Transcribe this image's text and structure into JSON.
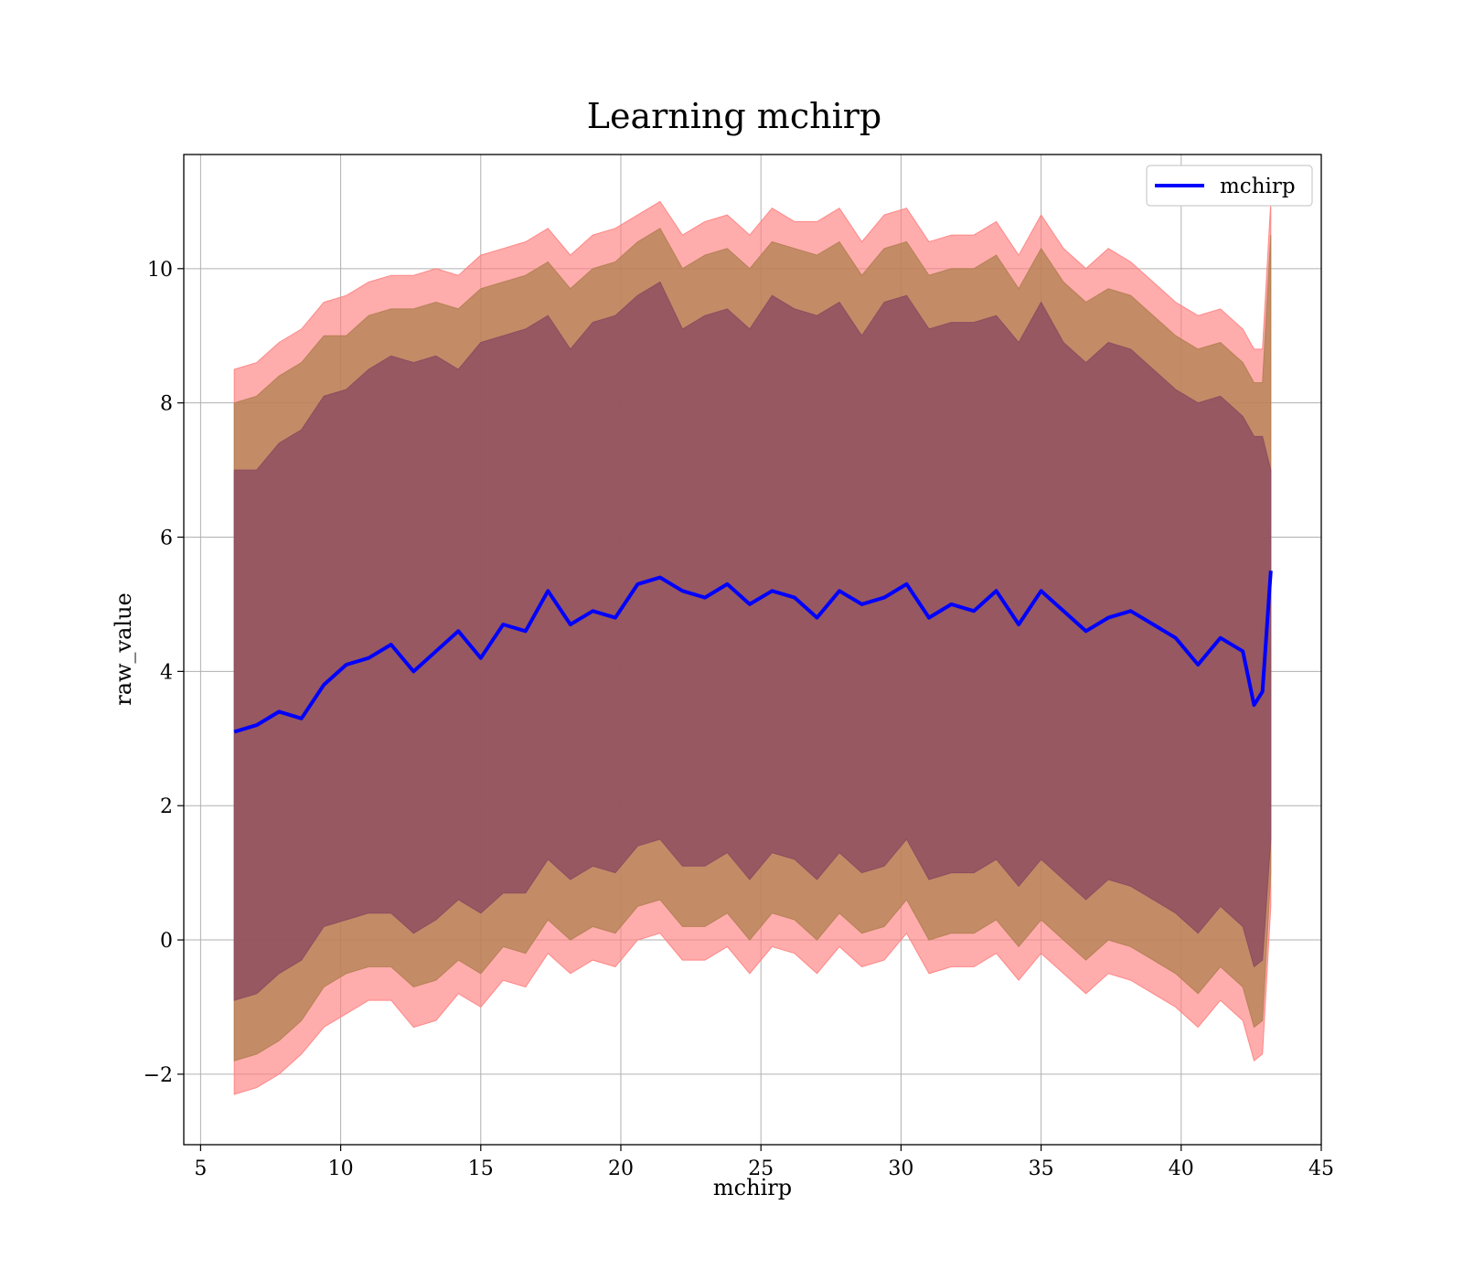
{
  "chart_data": {
    "type": "line",
    "title": "Learning mchirp",
    "xlabel": "mchirp",
    "ylabel": "raw_value",
    "xlim": [
      4.4,
      45
    ],
    "ylim": [
      -3.05,
      11.7
    ],
    "xticks": [
      5,
      10,
      15,
      20,
      25,
      30,
      35,
      40,
      45
    ],
    "xtick_labels": [
      "5",
      "10",
      "15",
      "20",
      "25",
      "30",
      "35",
      "40",
      "45"
    ],
    "yticks": [
      -2,
      0,
      2,
      4,
      6,
      8,
      10
    ],
    "ytick_labels": [
      "−2",
      "0",
      "2",
      "4",
      "6",
      "8",
      "10"
    ],
    "grid": true,
    "legend": {
      "position": "top-right",
      "entries": [
        "mchirp"
      ]
    },
    "colors": {
      "line": "#0000ff",
      "band_outer": "#ff8080",
      "band_mid": "#b08050",
      "band_inner": "#8b4a60"
    },
    "x": [
      6.2,
      7.0,
      7.8,
      8.6,
      9.4,
      10.2,
      11.0,
      11.8,
      12.6,
      13.4,
      14.2,
      15.0,
      15.8,
      16.6,
      17.4,
      18.2,
      19.0,
      19.8,
      20.6,
      21.4,
      22.2,
      23.0,
      23.8,
      24.6,
      25.4,
      26.2,
      27.0,
      27.8,
      28.6,
      29.4,
      30.2,
      31.0,
      31.8,
      32.6,
      33.4,
      34.2,
      35.0,
      35.8,
      36.6,
      37.4,
      38.2,
      39.0,
      39.8,
      40.6,
      41.4,
      42.2,
      42.6,
      42.9,
      43.2
    ],
    "series": [
      {
        "name": "mchirp",
        "values": [
          3.1,
          3.2,
          3.4,
          3.3,
          3.8,
          4.1,
          4.2,
          4.4,
          4.0,
          4.3,
          4.6,
          4.2,
          4.7,
          4.6,
          5.2,
          4.7,
          4.9,
          4.8,
          5.3,
          5.4,
          5.2,
          5.1,
          5.3,
          5.0,
          5.2,
          5.1,
          4.8,
          5.2,
          5.0,
          5.1,
          5.3,
          4.8,
          5.0,
          4.9,
          5.2,
          4.7,
          5.2,
          4.9,
          4.6,
          4.8,
          4.9,
          4.7,
          4.5,
          4.1,
          4.5,
          4.3,
          3.5,
          3.7,
          5.5
        ],
        "band_inner": {
          "upper": [
            7.0,
            7.0,
            7.4,
            7.6,
            8.1,
            8.2,
            8.5,
            8.7,
            8.6,
            8.7,
            8.5,
            8.9,
            9.0,
            9.1,
            9.3,
            8.8,
            9.2,
            9.3,
            9.6,
            9.8,
            9.1,
            9.3,
            9.4,
            9.1,
            9.6,
            9.4,
            9.3,
            9.5,
            9.0,
            9.5,
            9.6,
            9.1,
            9.2,
            9.2,
            9.3,
            8.9,
            9.5,
            8.9,
            8.6,
            8.9,
            8.8,
            8.5,
            8.2,
            8.0,
            8.1,
            7.8,
            7.5,
            7.5,
            7.0
          ],
          "lower": [
            -0.9,
            -0.8,
            -0.5,
            -0.3,
            0.2,
            0.3,
            0.4,
            0.4,
            0.1,
            0.3,
            0.6,
            0.4,
            0.7,
            0.7,
            1.2,
            0.9,
            1.1,
            1.0,
            1.4,
            1.5,
            1.1,
            1.1,
            1.3,
            0.9,
            1.3,
            1.2,
            0.9,
            1.3,
            1.0,
            1.1,
            1.5,
            0.9,
            1.0,
            1.0,
            1.2,
            0.8,
            1.2,
            0.9,
            0.6,
            0.9,
            0.8,
            0.6,
            0.4,
            0.1,
            0.5,
            0.2,
            -0.4,
            -0.3,
            1.5
          ]
        },
        "band_mid": {
          "upper": [
            8.0,
            8.1,
            8.4,
            8.6,
            9.0,
            9.0,
            9.3,
            9.4,
            9.4,
            9.5,
            9.4,
            9.7,
            9.8,
            9.9,
            10.1,
            9.7,
            10.0,
            10.1,
            10.4,
            10.6,
            10.0,
            10.2,
            10.3,
            10.0,
            10.4,
            10.3,
            10.2,
            10.4,
            9.9,
            10.3,
            10.4,
            9.9,
            10.0,
            10.0,
            10.2,
            9.7,
            10.3,
            9.8,
            9.5,
            9.7,
            9.6,
            9.3,
            9.0,
            8.8,
            8.9,
            8.6,
            8.3,
            8.3,
            10.5
          ],
          "lower": [
            -1.8,
            -1.7,
            -1.5,
            -1.2,
            -0.7,
            -0.5,
            -0.4,
            -0.4,
            -0.7,
            -0.6,
            -0.3,
            -0.5,
            -0.1,
            -0.2,
            0.3,
            0.0,
            0.2,
            0.1,
            0.5,
            0.6,
            0.2,
            0.2,
            0.4,
            0.0,
            0.4,
            0.3,
            0.0,
            0.4,
            0.1,
            0.2,
            0.6,
            0.0,
            0.1,
            0.1,
            0.3,
            -0.1,
            0.3,
            0.0,
            -0.3,
            0.0,
            -0.1,
            -0.3,
            -0.5,
            -0.8,
            -0.4,
            -0.7,
            -1.3,
            -1.2,
            1.0
          ]
        },
        "band_outer": {
          "upper": [
            8.5,
            8.6,
            8.9,
            9.1,
            9.5,
            9.6,
            9.8,
            9.9,
            9.9,
            10.0,
            9.9,
            10.2,
            10.3,
            10.4,
            10.6,
            10.2,
            10.5,
            10.6,
            10.8,
            11.0,
            10.5,
            10.7,
            10.8,
            10.5,
            10.9,
            10.7,
            10.7,
            10.9,
            10.4,
            10.8,
            10.9,
            10.4,
            10.5,
            10.5,
            10.7,
            10.2,
            10.8,
            10.3,
            10.0,
            10.3,
            10.1,
            9.8,
            9.5,
            9.3,
            9.4,
            9.1,
            8.8,
            8.8,
            11.0
          ],
          "lower": [
            -2.3,
            -2.2,
            -2.0,
            -1.7,
            -1.3,
            -1.1,
            -0.9,
            -0.9,
            -1.3,
            -1.2,
            -0.8,
            -1.0,
            -0.6,
            -0.7,
            -0.2,
            -0.5,
            -0.3,
            -0.4,
            0.0,
            0.1,
            -0.3,
            -0.3,
            -0.1,
            -0.5,
            -0.1,
            -0.2,
            -0.5,
            -0.1,
            -0.4,
            -0.3,
            0.1,
            -0.5,
            -0.4,
            -0.4,
            -0.2,
            -0.6,
            -0.2,
            -0.5,
            -0.8,
            -0.5,
            -0.6,
            -0.8,
            -1.0,
            -1.3,
            -0.9,
            -1.2,
            -1.8,
            -1.7,
            0.5
          ]
        }
      }
    ]
  }
}
